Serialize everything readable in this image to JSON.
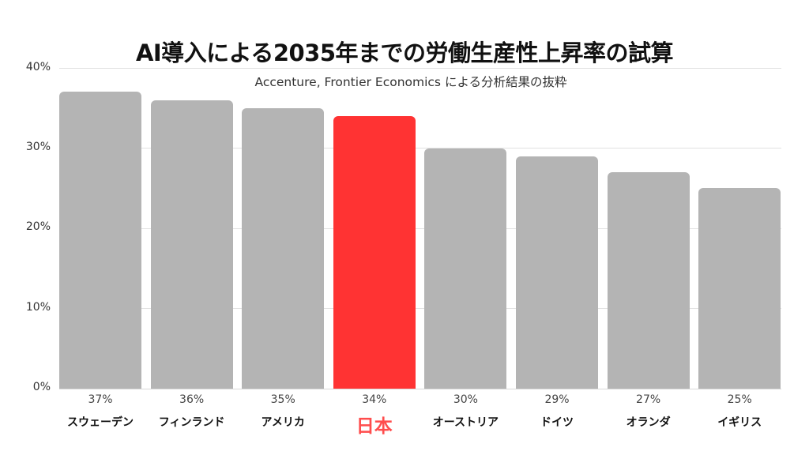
{
  "header": {
    "title": "AI導入による2035年までの労働生産性上昇率の試算",
    "subtitle": "Accenture, Frontier Economics による分析結果の抜粋"
  },
  "colors": {
    "bar_default": "#b4b4b4",
    "bar_highlight": "#ff3333",
    "highlight_label": "#ff4d4d",
    "grid": "#e2e2e2"
  },
  "yaxis": {
    "ticks": [
      "0%",
      "10%",
      "20%",
      "30%",
      "40%"
    ]
  },
  "bars": [
    {
      "label": "スウェーデン",
      "value_label": "37%"
    },
    {
      "label": "フィンランド",
      "value_label": "36%"
    },
    {
      "label": "アメリカ",
      "value_label": "35%"
    },
    {
      "label": "日本",
      "value_label": "34%"
    },
    {
      "label": "オーストリア",
      "value_label": "30%"
    },
    {
      "label": "ドイツ",
      "value_label": "29%"
    },
    {
      "label": "オランダ",
      "value_label": "27%"
    },
    {
      "label": "イギリス",
      "value_label": "25%"
    }
  ],
  "chart_data": {
    "type": "bar",
    "title": "AI導入による2035年までの労働生産性上昇率の試算",
    "subtitle": "Accenture, Frontier Economics による分析結果の抜粋",
    "categories": [
      "スウェーデン",
      "フィンランド",
      "アメリカ",
      "日本",
      "オーストリア",
      "ドイツ",
      "オランダ",
      "イギリス"
    ],
    "values": [
      37,
      36,
      35,
      34,
      30,
      29,
      27,
      25
    ],
    "value_unit": "%",
    "highlighted_category": "日本",
    "xlabel": "",
    "ylabel": "",
    "ylim": [
      0,
      40
    ],
    "yticks": [
      0,
      10,
      20,
      30,
      40
    ],
    "grid": true,
    "legend": null
  }
}
